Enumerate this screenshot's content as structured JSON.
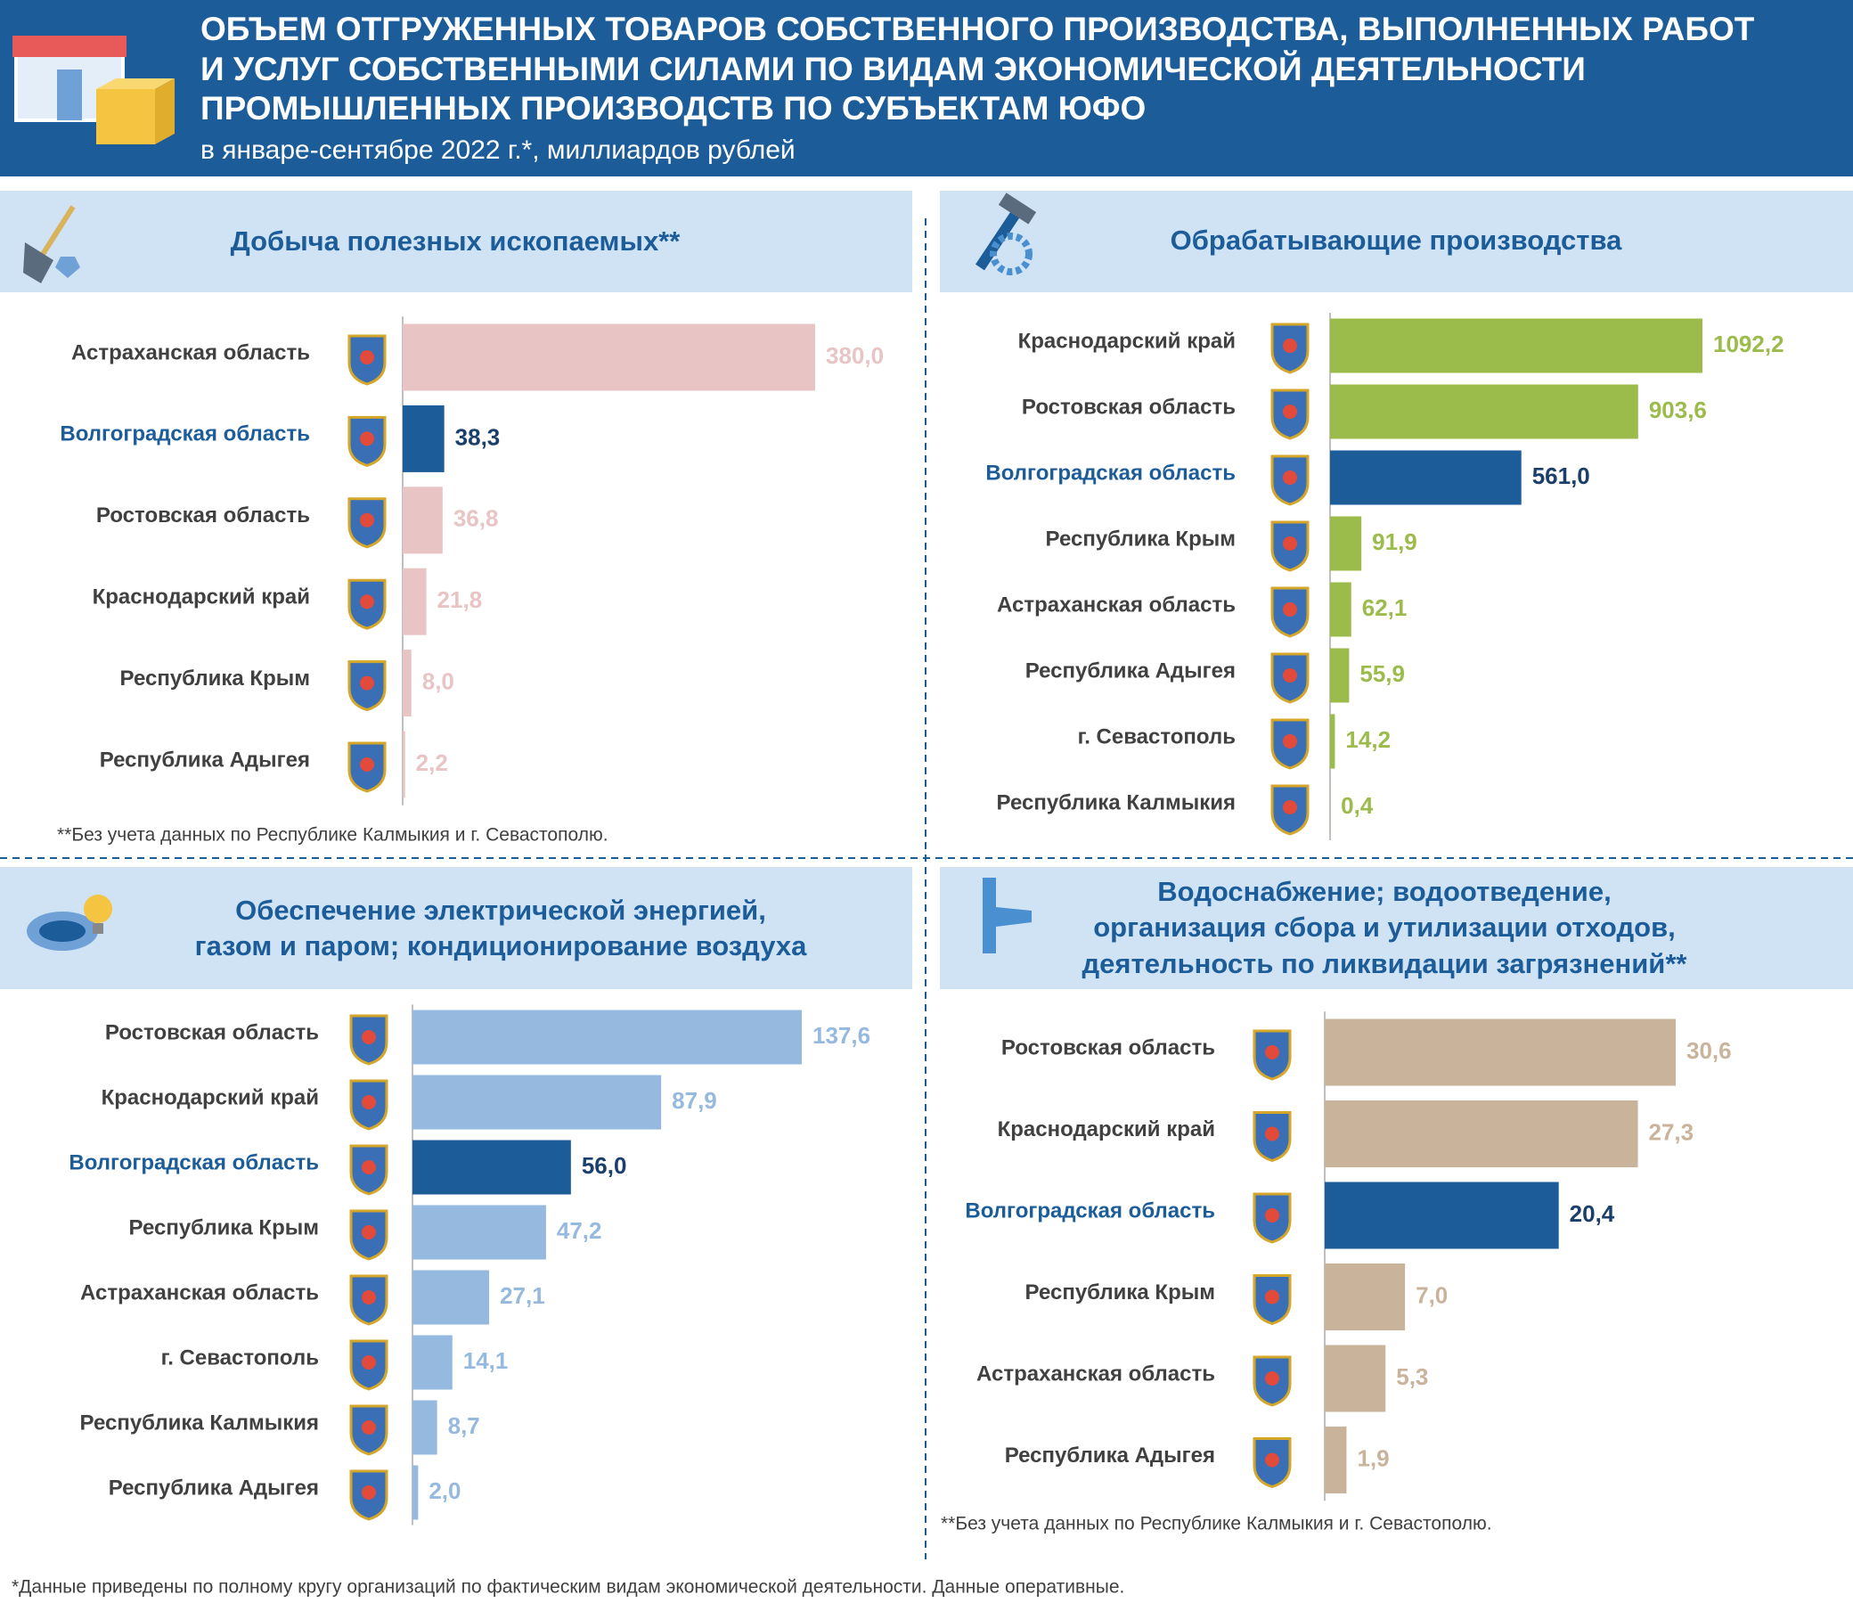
{
  "header": {
    "title": [
      "ОБЪЕМ ОТГРУЖЕННЫХ ТОВАРОВ СОБСТВЕННОГО ПРОИЗВОДСТВА, ВЫПОЛНЕННЫХ РАБОТ",
      "И УСЛУГ СОБСТВЕННЫМИ СИЛАМИ ПО ВИДАМ ЭКОНОМИЧЕСКОЙ ДЕЯТЕЛЬНОСТИ",
      "ПРОМЫШЛЕННЫХ ПРОИЗВОДСТВ ПО СУБЪЕКТАМ ЮФО"
    ],
    "subtitle": "в январе-сентябре 2022 г.*, миллиардов рублей"
  },
  "chart_data": [
    {
      "type": "bar",
      "title": [
        "Добыча полезных ископаемых**"
      ],
      "categories": [
        "Астраханская область",
        "Волгоградская область",
        "Ростовская область",
        "Краснодарский край",
        "Республика Крым",
        "Республика Адыгея"
      ],
      "values": [
        380.0,
        38.3,
        36.8,
        21.8,
        8.0,
        2.2
      ],
      "value_labels": [
        "380,0",
        "38,3",
        "36,8",
        "21,8",
        "8,0",
        "2,2"
      ],
      "color": "#e8c4c4",
      "colors": [
        "#e8c4c4",
        "#1b5c99",
        "#e8c4c4",
        "#e8c4c4",
        "#e8c4c4",
        "#e8c4c4"
      ],
      "note": "**Без учета данных по Республике Калмыкия и г. Севастополю."
    },
    {
      "type": "bar",
      "title": [
        "Обрабатывающие производства"
      ],
      "categories": [
        "Краснодарский край",
        "Ростовская область",
        "Волгоградская область",
        "Республика Крым",
        "Астраханская область",
        "Республика Адыгея",
        "г. Севастополь",
        "Республика Калмыкия"
      ],
      "values": [
        1092.2,
        903.6,
        561.0,
        91.9,
        62.1,
        55.9,
        14.2,
        0.4
      ],
      "value_labels": [
        "1092,2",
        "903,6",
        "561,0",
        "91,9",
        "62,1",
        "55,9",
        "14,2",
        "0,4"
      ],
      "color": "#9bbb4a",
      "colors": [
        "#9bbb4a",
        "#9bbb4a",
        "#1b5c99",
        "#9bbb4a",
        "#9bbb4a",
        "#9bbb4a",
        "#9bbb4a",
        "#9bbb4a"
      ]
    },
    {
      "type": "bar",
      "title": [
        "Обеспечение электрической энергией,",
        "газом и паром; кондиционирование воздуха"
      ],
      "categories": [
        "Ростовская область",
        "Краснодарский край",
        "Волгоградская область",
        "Республика Крым",
        "Астраханская область",
        "г. Севастополь",
        "Республика Калмыкия",
        "Республика Адыгея"
      ],
      "values": [
        137.6,
        87.9,
        56.0,
        47.2,
        27.1,
        14.1,
        8.7,
        2.0
      ],
      "value_labels": [
        "137,6",
        "87,9",
        "56,0",
        "47,2",
        "27,1",
        "14,1",
        "8,7",
        "2,0"
      ],
      "color": "#95b9df",
      "colors": [
        "#95b9df",
        "#95b9df",
        "#1b5c99",
        "#95b9df",
        "#95b9df",
        "#95b9df",
        "#95b9df",
        "#95b9df"
      ]
    },
    {
      "type": "bar",
      "title": [
        "Водоснабжение; водоотведение,",
        "организация сбора и утилизации отходов,",
        "деятельность  по ликвидации загрязнений**"
      ],
      "categories": [
        "Ростовская область",
        "Краснодарский край",
        "Волгоградская область",
        "Республика Крым",
        "Астраханская область",
        "Республика Адыгея"
      ],
      "values": [
        30.6,
        27.3,
        20.4,
        7.0,
        5.3,
        1.9
      ],
      "value_labels": [
        "30,6",
        "27,3",
        "20,4",
        "7,0",
        "5,3",
        "1,9"
      ],
      "color": "#c9b39b",
      "colors": [
        "#c9b39b",
        "#c9b39b",
        "#1b5c99",
        "#c9b39b",
        "#c9b39b",
        "#c9b39b"
      ],
      "note": "**Без учета данных по Республике Калмыкия и г. Севастополю."
    }
  ],
  "footnote": "*Данные приведены по полному кругу организаций по фактическим видам экономической деятельности. Данные оперативные."
}
